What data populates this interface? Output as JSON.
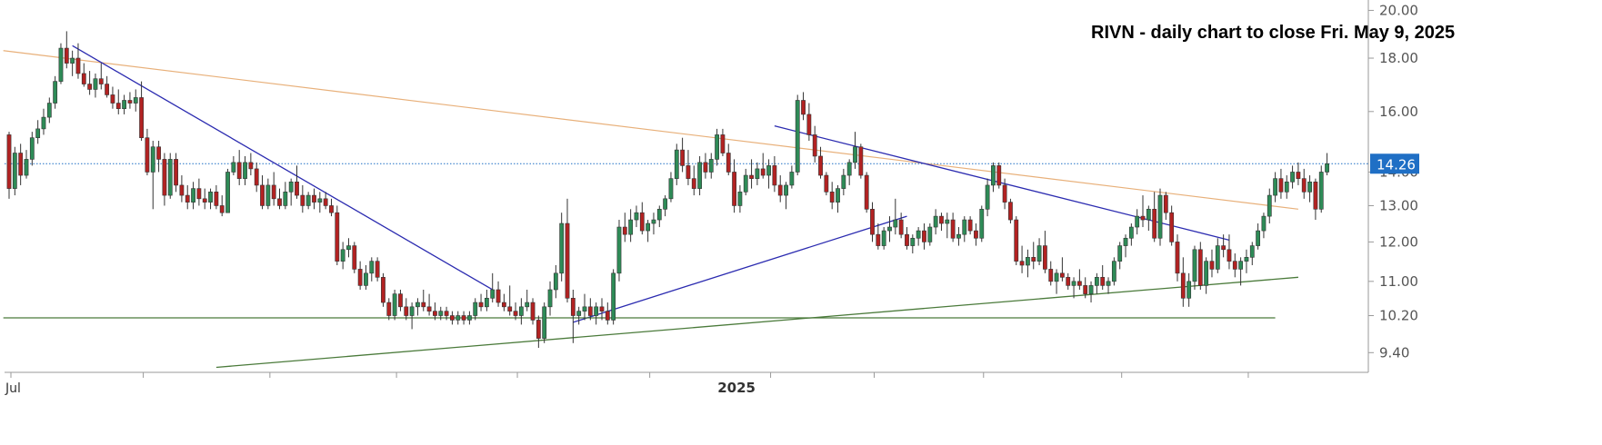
{
  "chart_data": {
    "type": "candlestick",
    "title": "RIVN - daily chart to close Fri. May 9, 2025",
    "yticks": [
      9.4,
      10.2,
      11.0,
      12.0,
      13.0,
      14.0,
      16.0,
      18.0,
      20.0
    ],
    "ytick_labels": [
      "9.40",
      "10.20",
      "11.00",
      "12.00",
      "13.00",
      "14.00",
      "16.00",
      "18.00",
      "20.00"
    ],
    "ylim": [
      9.0,
      20.3
    ],
    "y_scale": "log",
    "x_labels": [
      {
        "text": "Jul",
        "bar": 0,
        "bold": false
      },
      {
        "text": "2025",
        "bar": 125,
        "bold": true
      }
    ],
    "last_price": 14.26,
    "last_price_label": "14.26",
    "colors": {
      "up": "#2e8b57",
      "down": "#b22222",
      "last_price": "#1f6fc5",
      "downtrend": "#2b2bb0",
      "long_resistance": "#e8b07a",
      "support": "#4a7a3a"
    },
    "candles": [
      [
        15.2,
        15.3,
        13.2,
        13.5
      ],
      [
        13.5,
        14.8,
        13.3,
        14.6
      ],
      [
        14.6,
        14.9,
        13.6,
        13.9
      ],
      [
        13.9,
        14.7,
        13.8,
        14.4
      ],
      [
        14.4,
        15.3,
        14.2,
        15.1
      ],
      [
        15.1,
        15.7,
        14.9,
        15.4
      ],
      [
        15.4,
        16.1,
        15.2,
        15.8
      ],
      [
        15.8,
        16.5,
        15.6,
        16.3
      ],
      [
        16.3,
        17.3,
        16.1,
        17.1
      ],
      [
        17.1,
        18.6,
        17.0,
        18.4
      ],
      [
        18.4,
        19.1,
        17.6,
        17.8
      ],
      [
        17.8,
        18.3,
        17.3,
        18.0
      ],
      [
        18.0,
        18.6,
        17.2,
        17.4
      ],
      [
        17.4,
        17.8,
        16.9,
        17.0
      ],
      [
        17.0,
        17.5,
        16.6,
        16.8
      ],
      [
        16.8,
        17.4,
        16.5,
        17.2
      ],
      [
        17.2,
        17.8,
        16.8,
        17.0
      ],
      [
        17.0,
        17.3,
        16.5,
        16.6
      ],
      [
        16.6,
        16.9,
        16.1,
        16.3
      ],
      [
        16.3,
        16.8,
        15.9,
        16.1
      ],
      [
        16.1,
        16.6,
        15.9,
        16.4
      ],
      [
        16.4,
        16.7,
        16.1,
        16.3
      ],
      [
        16.3,
        16.8,
        16.0,
        16.5
      ],
      [
        16.5,
        17.1,
        15.0,
        15.1
      ],
      [
        15.1,
        15.4,
        13.9,
        14.0
      ],
      [
        14.0,
        15.0,
        12.9,
        14.8
      ],
      [
        14.8,
        15.0,
        14.0,
        14.4
      ],
      [
        14.4,
        14.6,
        13.0,
        13.3
      ],
      [
        13.3,
        14.6,
        13.2,
        14.4
      ],
      [
        14.4,
        14.6,
        13.4,
        13.6
      ],
      [
        13.6,
        13.9,
        13.1,
        13.3
      ],
      [
        13.3,
        13.6,
        12.9,
        13.1
      ],
      [
        13.1,
        13.7,
        12.9,
        13.5
      ],
      [
        13.5,
        13.8,
        13.0,
        13.2
      ],
      [
        13.2,
        13.5,
        12.9,
        13.1
      ],
      [
        13.1,
        13.5,
        12.9,
        13.4
      ],
      [
        13.4,
        13.6,
        12.9,
        13.0
      ],
      [
        13.0,
        13.3,
        12.7,
        12.8
      ],
      [
        12.8,
        14.1,
        12.8,
        14.0
      ],
      [
        14.0,
        14.5,
        13.9,
        14.3
      ],
      [
        14.3,
        14.7,
        13.6,
        13.8
      ],
      [
        13.8,
        14.5,
        13.6,
        14.3
      ],
      [
        14.3,
        14.6,
        13.9,
        14.1
      ],
      [
        14.1,
        14.3,
        13.4,
        13.6
      ],
      [
        13.6,
        13.9,
        12.9,
        13.0
      ],
      [
        13.0,
        13.8,
        12.9,
        13.6
      ],
      [
        13.6,
        14.0,
        13.0,
        13.2
      ],
      [
        13.2,
        13.5,
        12.9,
        13.0
      ],
      [
        13.0,
        13.7,
        12.9,
        13.4
      ],
      [
        13.4,
        13.8,
        13.0,
        13.7
      ],
      [
        13.7,
        14.2,
        13.2,
        13.3
      ],
      [
        13.3,
        13.6,
        12.8,
        13.0
      ],
      [
        13.0,
        13.4,
        12.9,
        13.3
      ],
      [
        13.3,
        13.5,
        12.9,
        13.1
      ],
      [
        13.1,
        13.4,
        12.8,
        13.2
      ],
      [
        13.2,
        13.4,
        12.9,
        13.0
      ],
      [
        13.0,
        13.2,
        12.7,
        12.8
      ],
      [
        12.8,
        13.0,
        11.4,
        11.5
      ],
      [
        11.5,
        12.0,
        11.3,
        11.8
      ],
      [
        11.8,
        12.1,
        11.6,
        11.9
      ],
      [
        11.9,
        12.0,
        11.2,
        11.3
      ],
      [
        11.3,
        11.5,
        10.8,
        10.9
      ],
      [
        10.9,
        11.4,
        10.8,
        11.2
      ],
      [
        11.2,
        11.6,
        11.0,
        11.5
      ],
      [
        11.5,
        11.6,
        11.0,
        11.1
      ],
      [
        11.1,
        11.2,
        10.4,
        10.5
      ],
      [
        10.5,
        10.6,
        10.1,
        10.2
      ],
      [
        10.2,
        10.8,
        10.1,
        10.7
      ],
      [
        10.7,
        10.8,
        10.3,
        10.4
      ],
      [
        10.4,
        10.6,
        10.1,
        10.2
      ],
      [
        10.2,
        10.5,
        9.9,
        10.4
      ],
      [
        10.4,
        10.6,
        10.2,
        10.5
      ],
      [
        10.5,
        10.8,
        10.3,
        10.4
      ],
      [
        10.4,
        10.7,
        10.2,
        10.3
      ],
      [
        10.3,
        10.5,
        10.1,
        10.2
      ],
      [
        10.2,
        10.4,
        10.1,
        10.3
      ],
      [
        10.3,
        10.4,
        10.1,
        10.2
      ],
      [
        10.2,
        10.3,
        10.0,
        10.1
      ],
      [
        10.1,
        10.3,
        10.0,
        10.2
      ],
      [
        10.2,
        10.3,
        10.0,
        10.1
      ],
      [
        10.1,
        10.3,
        10.0,
        10.2
      ],
      [
        10.2,
        10.6,
        10.1,
        10.5
      ],
      [
        10.5,
        10.7,
        10.3,
        10.4
      ],
      [
        10.4,
        10.8,
        10.3,
        10.6
      ],
      [
        10.6,
        11.2,
        10.5,
        10.8
      ],
      [
        10.8,
        11.0,
        10.4,
        10.5
      ],
      [
        10.5,
        10.7,
        10.3,
        10.4
      ],
      [
        10.4,
        10.9,
        10.2,
        10.3
      ],
      [
        10.3,
        10.5,
        10.1,
        10.2
      ],
      [
        10.2,
        10.6,
        10.0,
        10.4
      ],
      [
        10.4,
        10.8,
        10.3,
        10.5
      ],
      [
        10.5,
        10.6,
        10.0,
        10.1
      ],
      [
        10.1,
        10.2,
        9.5,
        9.7
      ],
      [
        9.7,
        10.5,
        9.6,
        10.4
      ],
      [
        10.4,
        11.0,
        10.2,
        10.8
      ],
      [
        10.8,
        11.4,
        10.6,
        11.2
      ],
      [
        11.2,
        12.8,
        11.0,
        12.5
      ],
      [
        12.5,
        13.2,
        10.5,
        10.6
      ],
      [
        10.6,
        10.8,
        9.6,
        10.2
      ],
      [
        10.2,
        10.4,
        10.0,
        10.3
      ],
      [
        10.3,
        10.7,
        10.1,
        10.4
      ],
      [
        10.4,
        10.6,
        10.1,
        10.2
      ],
      [
        10.2,
        10.5,
        10.0,
        10.4
      ],
      [
        10.4,
        10.6,
        10.1,
        10.3
      ],
      [
        10.3,
        10.5,
        10.0,
        10.1
      ],
      [
        10.1,
        11.3,
        10.0,
        11.2
      ],
      [
        11.2,
        12.6,
        11.0,
        12.4
      ],
      [
        12.4,
        12.8,
        12.0,
        12.2
      ],
      [
        12.2,
        12.9,
        12.0,
        12.6
      ],
      [
        12.6,
        13.0,
        12.4,
        12.8
      ],
      [
        12.8,
        13.1,
        12.2,
        12.3
      ],
      [
        12.3,
        12.6,
        12.0,
        12.5
      ],
      [
        12.5,
        12.8,
        12.2,
        12.6
      ],
      [
        12.6,
        13.0,
        12.4,
        12.9
      ],
      [
        12.9,
        13.3,
        12.7,
        13.2
      ],
      [
        13.2,
        14.0,
        13.1,
        13.8
      ],
      [
        13.8,
        14.9,
        13.6,
        14.7
      ],
      [
        14.7,
        15.1,
        14.0,
        14.2
      ],
      [
        14.2,
        14.7,
        13.6,
        13.8
      ],
      [
        13.8,
        14.2,
        13.3,
        13.5
      ],
      [
        13.5,
        14.5,
        13.3,
        14.3
      ],
      [
        14.3,
        14.6,
        13.8,
        14.0
      ],
      [
        14.0,
        14.6,
        13.8,
        14.4
      ],
      [
        14.4,
        15.4,
        14.2,
        15.2
      ],
      [
        15.2,
        15.4,
        14.5,
        14.6
      ],
      [
        14.6,
        14.9,
        13.9,
        14.0
      ],
      [
        14.0,
        14.4,
        12.8,
        13.0
      ],
      [
        13.0,
        13.6,
        12.8,
        13.4
      ],
      [
        13.4,
        14.1,
        13.3,
        13.9
      ],
      [
        13.9,
        14.4,
        13.5,
        13.8
      ],
      [
        13.8,
        14.3,
        13.6,
        14.1
      ],
      [
        14.1,
        14.6,
        13.8,
        13.9
      ],
      [
        13.9,
        14.4,
        13.5,
        14.2
      ],
      [
        14.2,
        14.5,
        13.4,
        13.6
      ],
      [
        13.6,
        13.9,
        13.1,
        13.3
      ],
      [
        13.3,
        13.7,
        12.9,
        13.6
      ],
      [
        13.6,
        14.2,
        13.5,
        14.0
      ],
      [
        14.0,
        16.6,
        13.9,
        16.4
      ],
      [
        16.4,
        16.7,
        15.7,
        15.9
      ],
      [
        15.9,
        16.3,
        15.0,
        15.2
      ],
      [
        15.2,
        15.5,
        14.3,
        14.5
      ],
      [
        14.5,
        14.8,
        13.8,
        13.9
      ],
      [
        13.9,
        14.0,
        13.3,
        13.4
      ],
      [
        13.4,
        13.7,
        12.9,
        13.1
      ],
      [
        13.1,
        13.6,
        12.8,
        13.5
      ],
      [
        13.5,
        14.1,
        13.3,
        13.9
      ],
      [
        13.9,
        14.4,
        13.6,
        14.3
      ],
      [
        14.3,
        15.3,
        14.1,
        14.8
      ],
      [
        14.8,
        14.9,
        13.8,
        13.9
      ],
      [
        13.9,
        14.0,
        12.8,
        12.9
      ],
      [
        12.9,
        13.1,
        12.0,
        12.2
      ],
      [
        12.2,
        12.5,
        11.8,
        11.9
      ],
      [
        11.9,
        12.4,
        11.8,
        12.3
      ],
      [
        12.3,
        12.7,
        12.0,
        12.4
      ],
      [
        12.4,
        13.2,
        12.2,
        12.6
      ],
      [
        12.6,
        12.8,
        12.1,
        12.2
      ],
      [
        12.2,
        12.4,
        11.8,
        11.9
      ],
      [
        11.9,
        12.2,
        11.7,
        12.1
      ],
      [
        12.1,
        12.4,
        11.9,
        12.3
      ],
      [
        12.3,
        12.5,
        11.8,
        12.0
      ],
      [
        12.0,
        12.5,
        11.9,
        12.4
      ],
      [
        12.4,
        12.9,
        12.2,
        12.7
      ],
      [
        12.7,
        12.8,
        12.3,
        12.5
      ],
      [
        12.5,
        12.8,
        12.1,
        12.6
      ],
      [
        12.6,
        12.8,
        12.0,
        12.1
      ],
      [
        12.1,
        12.4,
        11.9,
        12.2
      ],
      [
        12.2,
        12.7,
        12.0,
        12.6
      ],
      [
        12.6,
        12.7,
        12.2,
        12.3
      ],
      [
        12.3,
        12.5,
        11.9,
        12.1
      ],
      [
        12.1,
        13.0,
        12.0,
        12.9
      ],
      [
        12.9,
        13.8,
        12.7,
        13.6
      ],
      [
        13.6,
        14.3,
        13.4,
        14.2
      ],
      [
        14.2,
        14.3,
        13.5,
        13.6
      ],
      [
        13.6,
        13.8,
        12.9,
        13.1
      ],
      [
        13.1,
        13.2,
        12.5,
        12.6
      ],
      [
        12.6,
        12.7,
        11.4,
        11.5
      ],
      [
        11.5,
        11.9,
        11.2,
        11.4
      ],
      [
        11.4,
        11.8,
        11.1,
        11.6
      ],
      [
        11.6,
        12.0,
        11.3,
        11.5
      ],
      [
        11.5,
        12.1,
        11.4,
        11.9
      ],
      [
        11.9,
        12.3,
        11.2,
        11.3
      ],
      [
        11.3,
        11.5,
        10.9,
        11.0
      ],
      [
        11.0,
        11.3,
        10.7,
        11.2
      ],
      [
        11.2,
        11.6,
        11.0,
        11.1
      ],
      [
        11.1,
        11.2,
        10.8,
        10.9
      ],
      [
        10.9,
        11.1,
        10.6,
        11.0
      ],
      [
        11.0,
        11.3,
        10.8,
        10.9
      ],
      [
        10.9,
        11.1,
        10.6,
        10.7
      ],
      [
        10.7,
        11.0,
        10.5,
        10.9
      ],
      [
        10.9,
        11.2,
        10.7,
        11.1
      ],
      [
        11.1,
        11.4,
        10.8,
        10.9
      ],
      [
        10.9,
        11.1,
        10.7,
        11.0
      ],
      [
        11.0,
        11.6,
        10.9,
        11.5
      ],
      [
        11.5,
        12.0,
        11.3,
        11.9
      ],
      [
        11.9,
        12.2,
        11.6,
        12.1
      ],
      [
        12.1,
        12.5,
        11.9,
        12.4
      ],
      [
        12.4,
        12.9,
        12.2,
        12.7
      ],
      [
        12.7,
        13.3,
        12.4,
        12.6
      ],
      [
        12.6,
        13.0,
        12.3,
        12.9
      ],
      [
        12.9,
        13.4,
        12.0,
        12.1
      ],
      [
        12.1,
        13.5,
        11.9,
        13.3
      ],
      [
        13.3,
        13.4,
        12.6,
        12.8
      ],
      [
        12.8,
        13.0,
        11.9,
        12.0
      ],
      [
        12.0,
        12.2,
        11.0,
        11.2
      ],
      [
        11.2,
        11.6,
        10.4,
        10.6
      ],
      [
        10.6,
        11.2,
        10.4,
        11.0
      ],
      [
        11.0,
        11.9,
        10.8,
        11.8
      ],
      [
        11.8,
        12.0,
        10.8,
        10.9
      ],
      [
        10.9,
        11.6,
        10.7,
        11.5
      ],
      [
        11.5,
        11.8,
        11.1,
        11.3
      ],
      [
        11.3,
        12.1,
        11.2,
        11.9
      ],
      [
        11.9,
        12.2,
        11.6,
        11.8
      ],
      [
        11.8,
        12.2,
        11.3,
        11.5
      ],
      [
        11.5,
        11.7,
        11.1,
        11.3
      ],
      [
        11.3,
        11.6,
        10.9,
        11.5
      ],
      [
        11.5,
        11.8,
        11.2,
        11.6
      ],
      [
        11.6,
        12.0,
        11.4,
        11.9
      ],
      [
        11.9,
        12.5,
        11.8,
        12.3
      ],
      [
        12.3,
        12.8,
        12.1,
        12.7
      ],
      [
        12.7,
        13.5,
        12.5,
        13.3
      ],
      [
        13.3,
        14.0,
        13.1,
        13.8
      ],
      [
        13.8,
        14.1,
        13.2,
        13.4
      ],
      [
        13.4,
        13.9,
        13.2,
        13.7
      ],
      [
        13.7,
        14.2,
        13.5,
        14.0
      ],
      [
        14.0,
        14.3,
        13.6,
        13.8
      ],
      [
        13.8,
        14.1,
        13.2,
        13.4
      ],
      [
        13.4,
        13.9,
        13.1,
        13.7
      ],
      [
        13.7,
        13.8,
        12.6,
        12.9
      ],
      [
        12.9,
        14.2,
        12.8,
        14.0
      ],
      [
        14.0,
        14.6,
        13.9,
        14.26
      ]
    ],
    "trendlines": [
      {
        "name": "long-resistance",
        "color": "long_resistance",
        "from": [
          -1,
          18.3
        ],
        "to": [
          224,
          12.9
        ]
      },
      {
        "name": "downtrend-1",
        "color": "downtrend",
        "from": [
          11,
          18.5
        ],
        "to": [
          84,
          10.8
        ]
      },
      {
        "name": "uptrend",
        "color": "downtrend",
        "from": [
          98,
          10.05
        ],
        "to": [
          156,
          12.7
        ]
      },
      {
        "name": "downtrend-2",
        "color": "downtrend",
        "from": [
          133,
          15.5
        ],
        "to": [
          212,
          12.05
        ]
      },
      {
        "name": "long-support",
        "color": "support",
        "from": [
          36,
          9.1
        ],
        "to": [
          224,
          11.1
        ]
      },
      {
        "name": "horizontal-support",
        "color": "support",
        "from": [
          -1,
          10.15
        ],
        "to": [
          220,
          10.15
        ]
      }
    ]
  }
}
